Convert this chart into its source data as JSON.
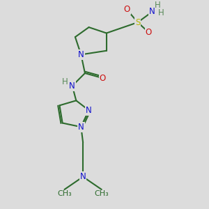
{
  "bg_color": "#dcdcdc",
  "bond_color": "#2d6b2d",
  "bond_width": 1.5,
  "atom_colors": {
    "N": "#1010cc",
    "O": "#cc1010",
    "S": "#b8b800",
    "H": "#5a8a5a",
    "C": "#2d6b2d"
  },
  "font_size": 8.5,
  "fig_size": [
    3.0,
    3.0
  ],
  "dpi": 100
}
